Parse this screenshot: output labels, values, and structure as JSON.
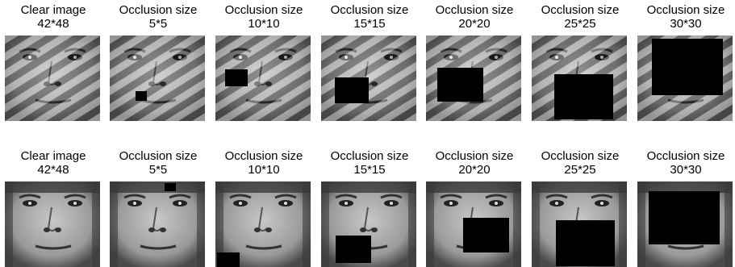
{
  "colors": {
    "occluder": "#000000",
    "background": "#ffffff"
  },
  "rows": [
    {
      "face_style": "striped",
      "panels": [
        {
          "caption_line1": "Clear image",
          "caption_line2": "42*48",
          "occlusion": null
        },
        {
          "caption_line1": "Occlusion size",
          "caption_line2": "5*5",
          "occlusion": {
            "size": 5
          }
        },
        {
          "caption_line1": "Occlusion size",
          "caption_line2": "10*10",
          "occlusion": {
            "size": 10
          }
        },
        {
          "caption_line1": "Occlusion size",
          "caption_line2": "15*15",
          "occlusion": {
            "size": 15
          }
        },
        {
          "caption_line1": "Occlusion size",
          "caption_line2": "20*20",
          "occlusion": {
            "size": 20
          }
        },
        {
          "caption_line1": "Occlusion size",
          "caption_line2": "25*25",
          "occlusion": {
            "size": 25
          }
        },
        {
          "caption_line1": "Occlusion size",
          "caption_line2": "30*30",
          "occlusion": {
            "size": 30
          }
        }
      ]
    },
    {
      "face_style": "plain",
      "panels": [
        {
          "caption_line1": "Clear image",
          "caption_line2": "42*48",
          "occlusion": null
        },
        {
          "caption_line1": "Occlusion size",
          "caption_line2": "5*5",
          "occlusion": {
            "size": 5
          }
        },
        {
          "caption_line1": "Occlusion size",
          "caption_line2": "10*10",
          "occlusion": {
            "size": 10
          }
        },
        {
          "caption_line1": "Occlusion size",
          "caption_line2": "15*15",
          "occlusion": {
            "size": 15
          }
        },
        {
          "caption_line1": "Occlusion size",
          "caption_line2": "20*20",
          "occlusion": {
            "size": 20
          }
        },
        {
          "caption_line1": "Occlusion size",
          "caption_line2": "25*25",
          "occlusion": {
            "size": 25
          }
        },
        {
          "caption_line1": "Occlusion size",
          "caption_line2": "30*30",
          "occlusion": {
            "size": 30
          }
        }
      ]
    }
  ]
}
